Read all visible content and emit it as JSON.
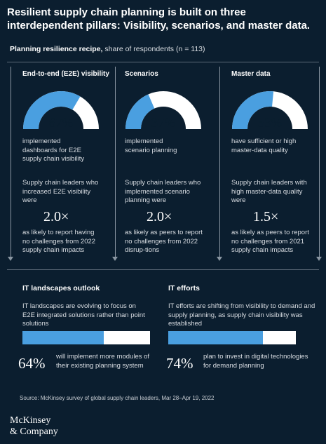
{
  "title": "Resilient supply chain planning is built on three interdependent pillars: Visibility, scenarios, and master data.",
  "subtitle_bold": "Planning resilience recipe,",
  "subtitle_rest": " share of respondents (n = 113)",
  "chart_data": [
    {
      "type": "gauge",
      "pillar": "End-to-end (E2E) visibility",
      "value": 67,
      "value_label": "67%",
      "caption": "implemented dashboards for E2E supply chain visibility",
      "lead": "Supply chain leaders who increased E2E visibility were",
      "multiple": "2.0×",
      "tail": "as likely to report having no challenges from 2022 supply chain impacts"
    },
    {
      "type": "gauge",
      "pillar": "Scenarios",
      "value": 37,
      "value_label": "37%",
      "caption": "implemented scenario planning",
      "lead": "Supply chain leaders who implemented scenario planning were",
      "multiple": "2.0×",
      "tail": "as likely as peers to report no challenges from 2022 disrup-tions"
    },
    {
      "type": "gauge",
      "pillar": "Master data",
      "value": 53,
      "value_label": "53%",
      "caption": "have sufficient or high master-data quality",
      "lead": "Supply chain leaders with high master-data quality were",
      "multiple": "1.5×",
      "tail": "as likely as peers to report no challenges from 2021 supply chain impacts"
    },
    {
      "type": "bar",
      "heading": "IT landscapes outlook",
      "description": "IT landscapes are evolving to focus on E2E integrated solutions rather than point solutions",
      "value": 64,
      "value_label": "64%",
      "label": "will implement more modules of their existing planning system"
    },
    {
      "type": "bar",
      "heading": "IT efforts",
      "description": "IT efforts are shifting from visibility to demand and supply planning, as supply chain visibility was established",
      "value": 74,
      "value_label": "74%",
      "label": "plan to invest in digital technologies for demand planning"
    }
  ],
  "source": "Source: McKinsey survey of global supply chain leaders, Mar 28–Apr 19, 2022",
  "logo_line1": "McKinsey",
  "logo_line2": "& Company",
  "colors": {
    "background": "#0b1e2f",
    "accent": "#4a9fe0",
    "track": "#ffffff",
    "arrow": "#8a96a2"
  }
}
